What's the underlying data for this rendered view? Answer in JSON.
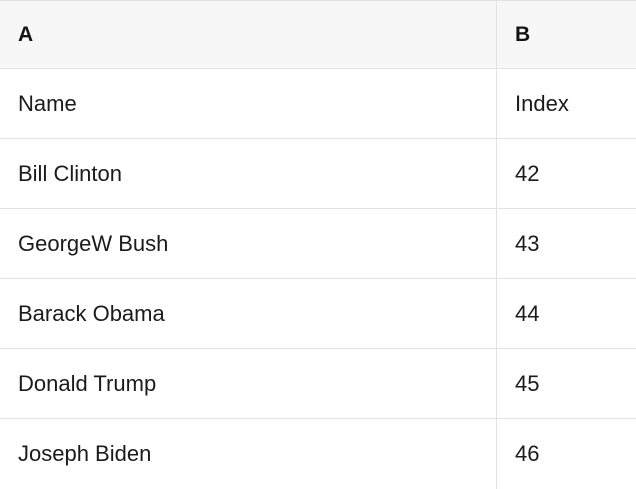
{
  "table": {
    "name": "presidents-sheet",
    "columns": [
      {
        "id": "A",
        "label": "A"
      },
      {
        "id": "B",
        "label": "B"
      }
    ],
    "rows": [
      {
        "A": "Name",
        "B": "Index"
      },
      {
        "A": "Bill Clinton",
        "B": "42"
      },
      {
        "A": "GeorgeW Bush",
        "B": "43"
      },
      {
        "A": "Barack Obama",
        "B": "44"
      },
      {
        "A": "Donald Trump",
        "B": "45"
      },
      {
        "A": "Joseph Biden",
        "B": "46"
      }
    ]
  },
  "colors": {
    "header_background": "#f7f7f7",
    "row_background": "#ffffff",
    "border": "#e2e2e2",
    "text": "#1b1b1b"
  }
}
